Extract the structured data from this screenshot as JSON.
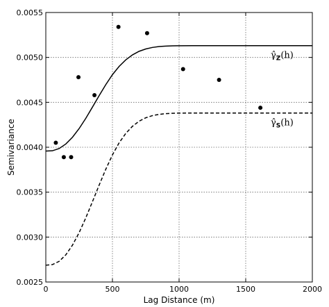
{
  "chart_data": {
    "type": "line",
    "title": "",
    "xlabel": "Lag Distance (m)",
    "ylabel": "Semivariance",
    "xlim": [
      0,
      2000
    ],
    "ylim": [
      0.0025,
      0.0055
    ],
    "xticks": [
      "0",
      "500",
      "1000",
      "1500",
      "2000"
    ],
    "yticks": [
      "0.0025",
      "0.0030",
      "0.0035",
      "0.0040",
      "0.0045",
      "0.0050",
      "0.0055"
    ],
    "grid": true,
    "grid_style": "dotted",
    "points": {
      "x": [
        75,
        135,
        190,
        245,
        365,
        545,
        760,
        1030,
        1300,
        1610
      ],
      "y": [
        0.00405,
        0.00389,
        0.00389,
        0.00478,
        0.00458,
        0.00534,
        0.00527,
        0.00487,
        0.00475,
        0.00444
      ]
    },
    "series": [
      {
        "label": "γ̂",
        "subscript": "Z",
        "suffix": "(h)",
        "style": "solid",
        "x": [
          0,
          50,
          100,
          150,
          200,
          250,
          300,
          350,
          400,
          450,
          500,
          550,
          600,
          650,
          700,
          750,
          800,
          850,
          900,
          950,
          1000,
          1100,
          1200,
          1400,
          1600,
          1800,
          2000
        ],
        "y": [
          0.003957,
          0.003961,
          0.003986,
          0.004036,
          0.004111,
          0.004208,
          0.004322,
          0.004447,
          0.004574,
          0.004697,
          0.004808,
          0.0049,
          0.004973,
          0.005028,
          0.005068,
          0.005094,
          0.005111,
          0.005121,
          0.005126,
          0.005129,
          0.00513,
          0.005131,
          0.005131,
          0.005131,
          0.005131,
          0.005131,
          0.005131
        ]
      },
      {
        "label": "γ̂",
        "subscript": "S",
        "suffix": "(h)",
        "style": "dashed",
        "x": [
          0,
          50,
          100,
          150,
          200,
          250,
          300,
          350,
          400,
          450,
          500,
          550,
          600,
          650,
          700,
          750,
          800,
          850,
          900,
          950,
          1000,
          1100,
          1200,
          1400,
          1600,
          1800,
          2000
        ],
        "y": [
          0.002687,
          0.002694,
          0.00273,
          0.002802,
          0.00291,
          0.003049,
          0.003214,
          0.003394,
          0.003578,
          0.003755,
          0.003915,
          0.004049,
          0.004154,
          0.004233,
          0.00429,
          0.004328,
          0.004352,
          0.004366,
          0.004374,
          0.004378,
          0.00438,
          0.004381,
          0.004381,
          0.004381,
          0.004381,
          0.004381,
          0.004381
        ]
      }
    ]
  },
  "colors": {
    "line": "#000000",
    "grid": "#666666",
    "background": "#ffffff"
  }
}
